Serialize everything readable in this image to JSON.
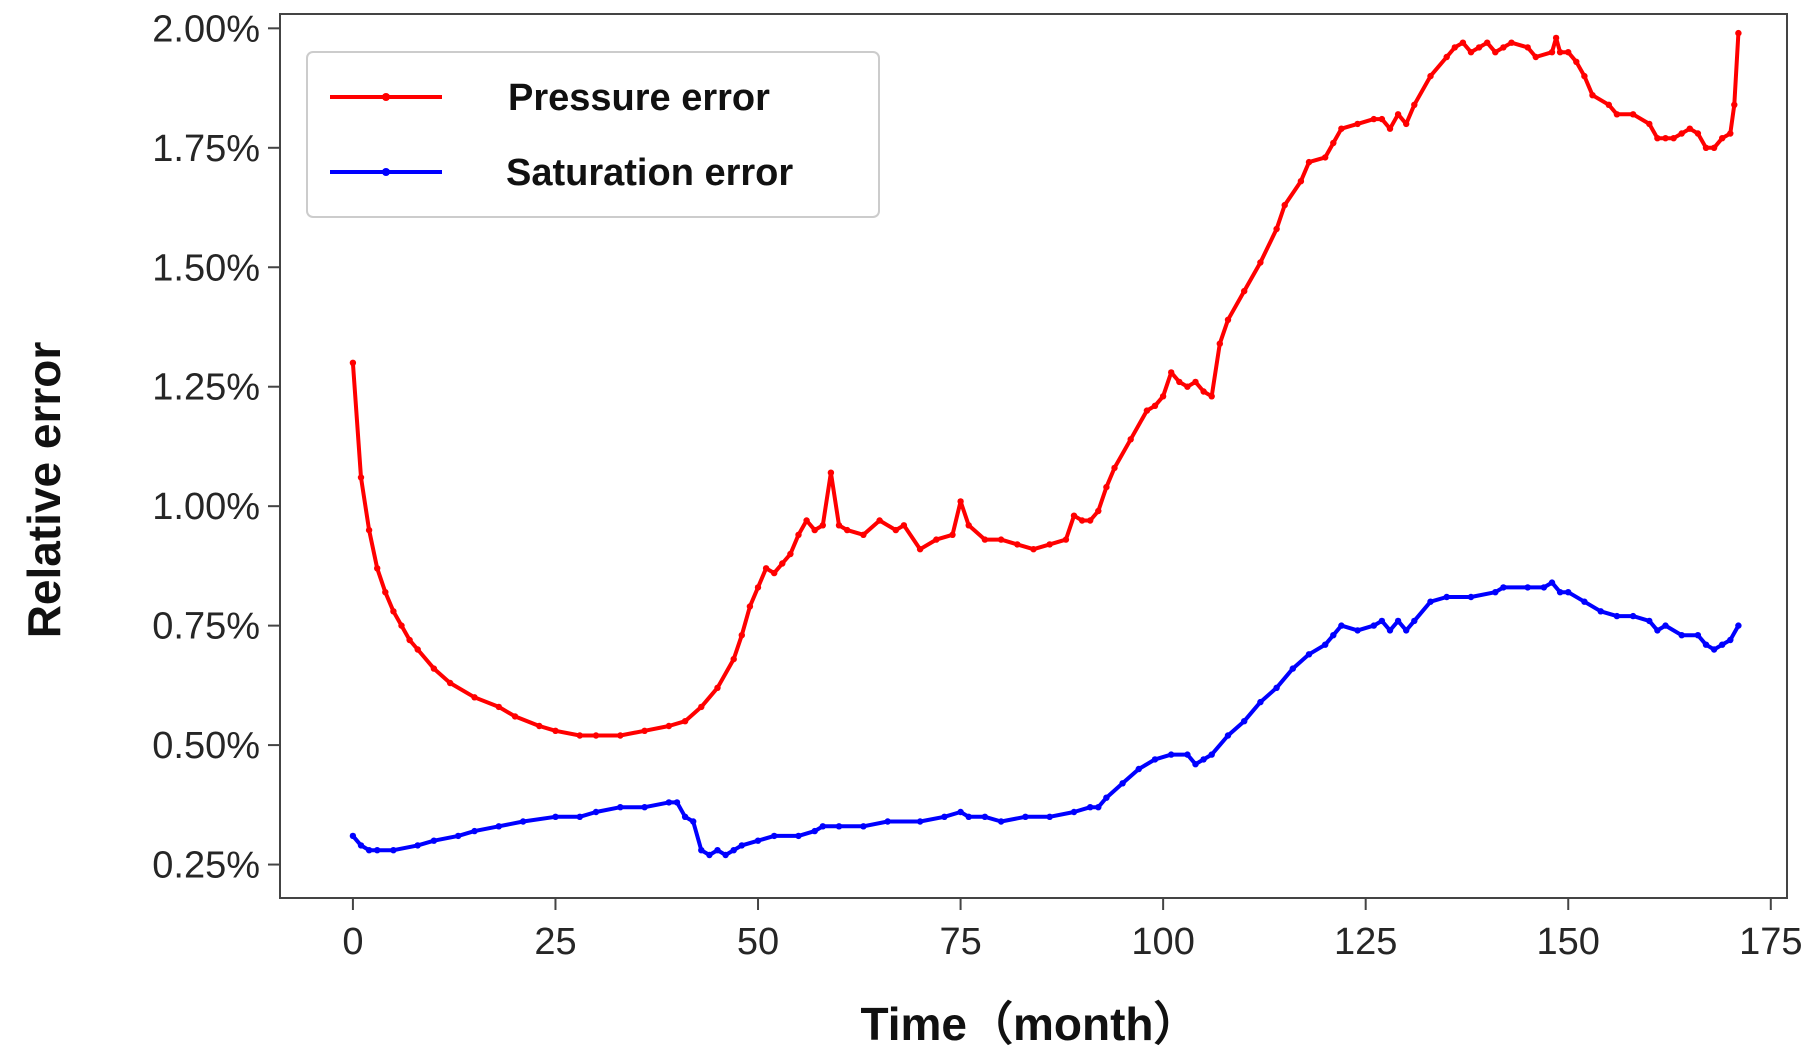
{
  "chart_data": {
    "type": "line",
    "xlabel": "Time（month）",
    "ylabel": "Relative error",
    "xlim": [
      -9,
      177
    ],
    "ylim": [
      0.0018,
      0.0203
    ],
    "x_ticks": [
      0,
      25,
      50,
      75,
      100,
      125,
      150,
      175
    ],
    "y_ticks": [
      0.0025,
      0.005,
      0.0075,
      0.01,
      0.0125,
      0.015,
      0.0175,
      0.02
    ],
    "y_tick_labels": [
      "0.25%",
      "0.50%",
      "0.75%",
      "1.00%",
      "1.25%",
      "1.50%",
      "1.75%",
      "2.00%"
    ],
    "grid": false,
    "legend_position": "top-left",
    "series": [
      {
        "name": "Pressure error",
        "color": "#ff0000",
        "points": [
          [
            0,
            0.013
          ],
          [
            1,
            0.0106
          ],
          [
            2,
            0.0095
          ],
          [
            3,
            0.0087
          ],
          [
            4,
            0.0082
          ],
          [
            5,
            0.0078
          ],
          [
            6,
            0.0075
          ],
          [
            7,
            0.0072
          ],
          [
            8,
            0.007
          ],
          [
            10,
            0.0066
          ],
          [
            12,
            0.0063
          ],
          [
            15,
            0.006
          ],
          [
            18,
            0.0058
          ],
          [
            20,
            0.0056
          ],
          [
            23,
            0.0054
          ],
          [
            25,
            0.0053
          ],
          [
            28,
            0.0052
          ],
          [
            30,
            0.0052
          ],
          [
            33,
            0.0052
          ],
          [
            36,
            0.0053
          ],
          [
            39,
            0.0054
          ],
          [
            41,
            0.0055
          ],
          [
            43,
            0.0058
          ],
          [
            45,
            0.0062
          ],
          [
            47,
            0.0068
          ],
          [
            48,
            0.0073
          ],
          [
            49,
            0.0079
          ],
          [
            50,
            0.0083
          ],
          [
            51,
            0.0087
          ],
          [
            52,
            0.0086
          ],
          [
            53,
            0.0088
          ],
          [
            54,
            0.009
          ],
          [
            55,
            0.0094
          ],
          [
            56,
            0.0097
          ],
          [
            57,
            0.0095
          ],
          [
            58,
            0.0096
          ],
          [
            59,
            0.0107
          ],
          [
            60,
            0.0096
          ],
          [
            61,
            0.0095
          ],
          [
            63,
            0.0094
          ],
          [
            65,
            0.0097
          ],
          [
            67,
            0.0095
          ],
          [
            68,
            0.0096
          ],
          [
            70,
            0.0091
          ],
          [
            72,
            0.0093
          ],
          [
            74,
            0.0094
          ],
          [
            75,
            0.0101
          ],
          [
            76,
            0.0096
          ],
          [
            78,
            0.0093
          ],
          [
            80,
            0.0093
          ],
          [
            82,
            0.0092
          ],
          [
            84,
            0.0091
          ],
          [
            86,
            0.0092
          ],
          [
            88,
            0.0093
          ],
          [
            89,
            0.0098
          ],
          [
            90,
            0.0097
          ],
          [
            91,
            0.0097
          ],
          [
            92,
            0.0099
          ],
          [
            93,
            0.0104
          ],
          [
            94,
            0.0108
          ],
          [
            96,
            0.0114
          ],
          [
            98,
            0.012
          ],
          [
            99,
            0.0121
          ],
          [
            100,
            0.0123
          ],
          [
            101,
            0.0128
          ],
          [
            102,
            0.0126
          ],
          [
            103,
            0.0125
          ],
          [
            104,
            0.0126
          ],
          [
            105,
            0.0124
          ],
          [
            106,
            0.0123
          ],
          [
            107,
            0.0134
          ],
          [
            108,
            0.0139
          ],
          [
            110,
            0.0145
          ],
          [
            112,
            0.0151
          ],
          [
            114,
            0.0158
          ],
          [
            115,
            0.0163
          ],
          [
            117,
            0.0168
          ],
          [
            118,
            0.0172
          ],
          [
            120,
            0.0173
          ],
          [
            121,
            0.0176
          ],
          [
            122,
            0.0179
          ],
          [
            124,
            0.018
          ],
          [
            126,
            0.0181
          ],
          [
            127,
            0.0181
          ],
          [
            128,
            0.0179
          ],
          [
            129,
            0.0182
          ],
          [
            130,
            0.018
          ],
          [
            131,
            0.0184
          ],
          [
            133,
            0.019
          ],
          [
            135,
            0.0194
          ],
          [
            136,
            0.0196
          ],
          [
            137,
            0.0197
          ],
          [
            138,
            0.0195
          ],
          [
            139,
            0.0196
          ],
          [
            140,
            0.0197
          ],
          [
            141,
            0.0195
          ],
          [
            142,
            0.0196
          ],
          [
            143,
            0.0197
          ],
          [
            145,
            0.0196
          ],
          [
            146,
            0.0194
          ],
          [
            148,
            0.0195
          ],
          [
            148.5,
            0.0198
          ],
          [
            149,
            0.0195
          ],
          [
            150,
            0.0195
          ],
          [
            151,
            0.0193
          ],
          [
            152,
            0.019
          ],
          [
            153,
            0.0186
          ],
          [
            155,
            0.0184
          ],
          [
            156,
            0.0182
          ],
          [
            158,
            0.0182
          ],
          [
            160,
            0.018
          ],
          [
            161,
            0.0177
          ],
          [
            162,
            0.0177
          ],
          [
            163,
            0.0177
          ],
          [
            164,
            0.0178
          ],
          [
            165,
            0.0179
          ],
          [
            166,
            0.0178
          ],
          [
            167,
            0.0175
          ],
          [
            168,
            0.0175
          ],
          [
            169,
            0.0177
          ],
          [
            170,
            0.0178
          ],
          [
            170.5,
            0.0184
          ],
          [
            171,
            0.0199
          ]
        ]
      },
      {
        "name": "Saturation error",
        "color": "#0000ff",
        "points": [
          [
            0,
            0.0031
          ],
          [
            1,
            0.0029
          ],
          [
            2,
            0.0028
          ],
          [
            3,
            0.0028
          ],
          [
            5,
            0.0028
          ],
          [
            8,
            0.0029
          ],
          [
            10,
            0.003
          ],
          [
            13,
            0.0031
          ],
          [
            15,
            0.0032
          ],
          [
            18,
            0.0033
          ],
          [
            21,
            0.0034
          ],
          [
            25,
            0.0035
          ],
          [
            28,
            0.0035
          ],
          [
            30,
            0.0036
          ],
          [
            33,
            0.0037
          ],
          [
            36,
            0.0037
          ],
          [
            39,
            0.0038
          ],
          [
            40,
            0.0038
          ],
          [
            41,
            0.0035
          ],
          [
            42,
            0.0034
          ],
          [
            43,
            0.0028
          ],
          [
            44,
            0.0027
          ],
          [
            45,
            0.0028
          ],
          [
            46,
            0.0027
          ],
          [
            47,
            0.0028
          ],
          [
            48,
            0.0029
          ],
          [
            50,
            0.003
          ],
          [
            52,
            0.0031
          ],
          [
            55,
            0.0031
          ],
          [
            57,
            0.0032
          ],
          [
            58,
            0.0033
          ],
          [
            60,
            0.0033
          ],
          [
            63,
            0.0033
          ],
          [
            66,
            0.0034
          ],
          [
            70,
            0.0034
          ],
          [
            73,
            0.0035
          ],
          [
            75,
            0.0036
          ],
          [
            76,
            0.0035
          ],
          [
            78,
            0.0035
          ],
          [
            80,
            0.0034
          ],
          [
            83,
            0.0035
          ],
          [
            86,
            0.0035
          ],
          [
            89,
            0.0036
          ],
          [
            91,
            0.0037
          ],
          [
            92,
            0.0037
          ],
          [
            93,
            0.0039
          ],
          [
            95,
            0.0042
          ],
          [
            97,
            0.0045
          ],
          [
            99,
            0.0047
          ],
          [
            101,
            0.0048
          ],
          [
            103,
            0.0048
          ],
          [
            104,
            0.0046
          ],
          [
            105,
            0.0047
          ],
          [
            106,
            0.0048
          ],
          [
            108,
            0.0052
          ],
          [
            110,
            0.0055
          ],
          [
            112,
            0.0059
          ],
          [
            114,
            0.0062
          ],
          [
            116,
            0.0066
          ],
          [
            118,
            0.0069
          ],
          [
            120,
            0.0071
          ],
          [
            121,
            0.0073
          ],
          [
            122,
            0.0075
          ],
          [
            124,
            0.0074
          ],
          [
            126,
            0.0075
          ],
          [
            127,
            0.0076
          ],
          [
            128,
            0.0074
          ],
          [
            129,
            0.0076
          ],
          [
            130,
            0.0074
          ],
          [
            131,
            0.0076
          ],
          [
            133,
            0.008
          ],
          [
            135,
            0.0081
          ],
          [
            138,
            0.0081
          ],
          [
            141,
            0.0082
          ],
          [
            142,
            0.0083
          ],
          [
            145,
            0.0083
          ],
          [
            147,
            0.0083
          ],
          [
            148,
            0.0084
          ],
          [
            149,
            0.0082
          ],
          [
            150,
            0.0082
          ],
          [
            152,
            0.008
          ],
          [
            154,
            0.0078
          ],
          [
            156,
            0.0077
          ],
          [
            158,
            0.0077
          ],
          [
            160,
            0.0076
          ],
          [
            161,
            0.0074
          ],
          [
            162,
            0.0075
          ],
          [
            164,
            0.0073
          ],
          [
            166,
            0.0073
          ],
          [
            167,
            0.0071
          ],
          [
            168,
            0.007
          ],
          [
            169,
            0.0071
          ],
          [
            170,
            0.0072
          ],
          [
            171,
            0.0075
          ]
        ]
      }
    ]
  }
}
